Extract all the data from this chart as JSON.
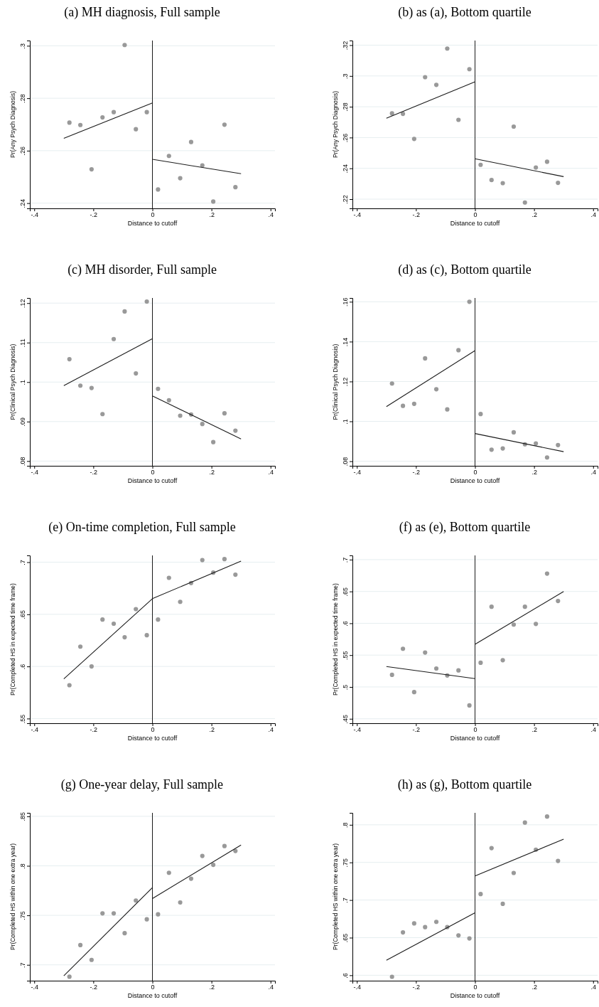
{
  "chart_data": [
    {
      "type": "scatter",
      "title": "(a) MH diagnosis, Full sample",
      "xlabel": "Distance to cutoff",
      "ylabel": "Pr(Any Psych Diagnosis)",
      "xlim": [
        -0.415,
        0.415
      ],
      "ylim": [
        0.238,
        0.302
      ],
      "xticks": [
        {
          "value": -0.4,
          "label": "-.4"
        },
        {
          "value": -0.2,
          "label": "-.2"
        },
        {
          "value": 0,
          "label": "0"
        },
        {
          "value": 0.2,
          "label": ".2"
        },
        {
          "value": 0.4,
          "label": ".4"
        }
      ],
      "yticks": [
        {
          "value": 0.24,
          "label": ".24"
        },
        {
          "value": 0.26,
          "label": ".26"
        },
        {
          "value": 0.28,
          "label": ".28"
        },
        {
          "value": 0.3,
          "label": ".3"
        }
      ],
      "grid": "y",
      "ref_lines": [
        {
          "axis": "x",
          "value": 0,
          "color": "#1a1a1a"
        }
      ],
      "x": [
        -0.281,
        -0.244,
        -0.206,
        -0.169,
        -0.131,
        -0.094,
        -0.056,
        -0.019,
        0.019,
        0.056,
        0.094,
        0.131,
        0.169,
        0.206,
        0.244,
        0.281
      ],
      "series": [
        {
          "color": "#999999",
          "marker": "circle",
          "values": [
            0.2707,
            0.2698,
            0.2529,
            0.2727,
            0.2747,
            0.3003,
            0.2682,
            0.2747,
            0.2452,
            0.258,
            0.2495,
            0.2633,
            0.2544,
            0.2406,
            0.2699,
            0.2461
          ]
        },
        {
          "type": "line",
          "color": "#1a1a1a",
          "x": [
            -0.3,
            0
          ],
          "values": [
            0.2647,
            0.2782
          ]
        },
        {
          "type": "line",
          "color": "#1a1a1a",
          "x": [
            0,
            0.3
          ],
          "values": [
            0.2567,
            0.2512
          ]
        }
      ]
    },
    {
      "type": "scatter",
      "title": "(b) as (a), Bottom quartile",
      "xlabel": "Distance to cutoff",
      "ylabel": "Pr(Any Psych Diagnosis)",
      "xlim": [
        -0.415,
        0.415
      ],
      "ylim": [
        0.214,
        0.323
      ],
      "xticks": [
        {
          "value": -0.4,
          "label": "-.4"
        },
        {
          "value": -0.2,
          "label": "-.2"
        },
        {
          "value": 0,
          "label": "0"
        },
        {
          "value": 0.2,
          "label": ".2"
        },
        {
          "value": 0.4,
          "label": ".4"
        }
      ],
      "yticks": [
        {
          "value": 0.22,
          "label": ".22"
        },
        {
          "value": 0.24,
          "label": ".24"
        },
        {
          "value": 0.26,
          "label": ".26"
        },
        {
          "value": 0.28,
          "label": ".28"
        },
        {
          "value": 0.3,
          "label": ".3"
        },
        {
          "value": 0.32,
          "label": ".32"
        }
      ],
      "grid": "y",
      "ref_lines": [
        {
          "axis": "x",
          "value": 0,
          "color": "#1a1a1a"
        }
      ],
      "x": [
        -0.281,
        -0.244,
        -0.206,
        -0.169,
        -0.131,
        -0.094,
        -0.056,
        -0.019,
        0.019,
        0.056,
        0.094,
        0.131,
        0.169,
        0.206,
        0.244,
        0.281
      ],
      "series": [
        {
          "color": "#999999",
          "marker": "circle",
          "values": [
            0.2757,
            0.2754,
            0.2591,
            0.2992,
            0.2942,
            0.3178,
            0.2715,
            0.3044,
            0.2423,
            0.2324,
            0.2304,
            0.2671,
            0.2178,
            0.2405,
            0.2443,
            0.2306
          ]
        },
        {
          "type": "line",
          "color": "#1a1a1a",
          "x": [
            -0.3,
            0
          ],
          "values": [
            0.2725,
            0.2962
          ]
        },
        {
          "type": "line",
          "color": "#1a1a1a",
          "x": [
            0,
            0.3
          ],
          "values": [
            0.2462,
            0.2346
          ]
        }
      ]
    },
    {
      "type": "scatter",
      "title": "(c) MH disorder, Full sample",
      "xlabel": "Distance to cutoff",
      "ylabel": "Pr(Clinical Psych Diagnosis)",
      "xlim": [
        -0.415,
        0.415
      ],
      "ylim": [
        0.0788,
        0.1213
      ],
      "xticks": [
        {
          "value": -0.4,
          "label": "-.4"
        },
        {
          "value": -0.2,
          "label": "-.2"
        },
        {
          "value": 0,
          "label": "0"
        },
        {
          "value": 0.2,
          "label": ".2"
        },
        {
          "value": 0.4,
          "label": ".4"
        }
      ],
      "yticks": [
        {
          "value": 0.08,
          "label": ".08"
        },
        {
          "value": 0.09,
          "label": ".09"
        },
        {
          "value": 0.1,
          "label": ".1"
        },
        {
          "value": 0.11,
          "label": ".11"
        },
        {
          "value": 0.12,
          "label": ".12"
        }
      ],
      "grid": "y",
      "ref_lines": [
        {
          "axis": "x",
          "value": 0,
          "color": "#1a1a1a"
        }
      ],
      "x": [
        -0.281,
        -0.244,
        -0.206,
        -0.169,
        -0.131,
        -0.094,
        -0.056,
        -0.019,
        0.019,
        0.056,
        0.094,
        0.131,
        0.169,
        0.206,
        0.244,
        0.281
      ],
      "series": [
        {
          "color": "#999999",
          "marker": "circle",
          "values": [
            0.1058,
            0.0991,
            0.0985,
            0.0919,
            0.1109,
            0.1179,
            0.1022,
            0.1204,
            0.0983,
            0.0954,
            0.0915,
            0.0918,
            0.0894,
            0.0848,
            0.0921,
            0.0877
          ]
        },
        {
          "type": "line",
          "color": "#1a1a1a",
          "x": [
            -0.3,
            0
          ],
          "values": [
            0.0991,
            0.111
          ]
        },
        {
          "type": "line",
          "color": "#1a1a1a",
          "x": [
            0,
            0.3
          ],
          "values": [
            0.0965,
            0.0856
          ]
        }
      ]
    },
    {
      "type": "scatter",
      "title": "(d) as (c), Bottom quartile",
      "xlabel": "Distance to cutoff",
      "ylabel": "Pr(Clinical Psych Diagnosis)",
      "xlim": [
        -0.415,
        0.415
      ],
      "ylim": [
        0.0777,
        0.1619
      ],
      "xticks": [
        {
          "value": -0.4,
          "label": "-.4"
        },
        {
          "value": -0.2,
          "label": "-.2"
        },
        {
          "value": 0,
          "label": "0"
        },
        {
          "value": 0.2,
          "label": ".2"
        },
        {
          "value": 0.4,
          "label": ".4"
        }
      ],
      "yticks": [
        {
          "value": 0.08,
          "label": ".08"
        },
        {
          "value": 0.1,
          "label": ".1"
        },
        {
          "value": 0.12,
          "label": ".12"
        },
        {
          "value": 0.14,
          "label": ".14"
        },
        {
          "value": 0.16,
          "label": ".16"
        }
      ],
      "grid": "y",
      "ref_lines": [
        {
          "axis": "x",
          "value": 0,
          "color": "#1a1a1a"
        }
      ],
      "x": [
        -0.281,
        -0.244,
        -0.206,
        -0.169,
        -0.131,
        -0.094,
        -0.056,
        -0.019,
        0.019,
        0.056,
        0.094,
        0.131,
        0.169,
        0.206,
        0.244,
        0.281
      ],
      "series": [
        {
          "color": "#999999",
          "marker": "circle",
          "values": [
            0.119,
            0.1078,
            0.1088,
            0.1316,
            0.1161,
            0.106,
            0.1357,
            0.16,
            0.1037,
            0.0858,
            0.0864,
            0.0945,
            0.0885,
            0.0889,
            0.0819,
            0.0881
          ]
        },
        {
          "type": "line",
          "color": "#1a1a1a",
          "x": [
            -0.3,
            0
          ],
          "values": [
            0.1074,
            0.1355
          ]
        },
        {
          "type": "line",
          "color": "#1a1a1a",
          "x": [
            0,
            0.3
          ],
          "values": [
            0.0939,
            0.0848
          ]
        }
      ]
    },
    {
      "type": "scatter",
      "title": "(e) On-time completion, Full sample",
      "xlabel": "Distance to cutoff",
      "ylabel": "Pr(Completed HS in expected time frame)",
      "xlim": [
        -0.415,
        0.415
      ],
      "ylim": [
        0.5455,
        0.7065
      ],
      "xticks": [
        {
          "value": -0.4,
          "label": "-.4"
        },
        {
          "value": -0.2,
          "label": "-.2"
        },
        {
          "value": 0,
          "label": "0"
        },
        {
          "value": 0.2,
          "label": ".2"
        },
        {
          "value": 0.4,
          "label": ".4"
        }
      ],
      "yticks": [
        {
          "value": 0.55,
          "label": ".55"
        },
        {
          "value": 0.6,
          "label": ".6"
        },
        {
          "value": 0.65,
          "label": ".65"
        },
        {
          "value": 0.7,
          "label": ".7"
        }
      ],
      "grid": "y",
      "ref_lines": [
        {
          "axis": "x",
          "value": 0,
          "color": "#1a1a1a"
        }
      ],
      "x": [
        -0.281,
        -0.244,
        -0.206,
        -0.169,
        -0.131,
        -0.094,
        -0.056,
        -0.019,
        0.019,
        0.056,
        0.094,
        0.131,
        0.169,
        0.206,
        0.244,
        0.281
      ],
      "series": [
        {
          "color": "#999999",
          "marker": "circle",
          "values": [
            0.582,
            0.619,
            0.6,
            0.645,
            0.641,
            0.628,
            0.655,
            0.63,
            0.645,
            0.685,
            0.662,
            0.68,
            0.702,
            0.69,
            0.703,
            0.688
          ]
        },
        {
          "type": "line",
          "color": "#1a1a1a",
          "x": [
            -0.3,
            0,
            0.3
          ],
          "values": [
            0.588,
            0.665,
            0.701
          ]
        }
      ]
    },
    {
      "type": "scatter",
      "title": "(f) as (e), Bottom quartile",
      "xlabel": "Distance to cutoff",
      "ylabel": "Pr(Completed HS in expected time frame)",
      "xlim": [
        -0.415,
        0.415
      ],
      "ylim": [
        0.443,
        0.7066
      ],
      "xticks": [
        {
          "value": -0.4,
          "label": "-.4"
        },
        {
          "value": -0.2,
          "label": "-.2"
        },
        {
          "value": 0,
          "label": "0"
        },
        {
          "value": 0.2,
          "label": ".2"
        },
        {
          "value": 0.4,
          "label": ".4"
        }
      ],
      "yticks": [
        {
          "value": 0.45,
          "label": ".45"
        },
        {
          "value": 0.5,
          "label": ".5"
        },
        {
          "value": 0.55,
          "label": ".55"
        },
        {
          "value": 0.6,
          "label": ".6"
        },
        {
          "value": 0.65,
          "label": ".65"
        },
        {
          "value": 0.7,
          "label": ".7"
        }
      ],
      "grid": "y",
      "ref_lines": [
        {
          "axis": "x",
          "value": 0,
          "color": "#1a1a1a"
        }
      ],
      "x": [
        -0.281,
        -0.244,
        -0.206,
        -0.169,
        -0.131,
        -0.094,
        -0.056,
        -0.019,
        0.019,
        0.056,
        0.094,
        0.131,
        0.169,
        0.206,
        0.244,
        0.281
      ],
      "series": [
        {
          "color": "#999999",
          "marker": "circle",
          "values": [
            0.519,
            0.56,
            0.492,
            0.554,
            0.529,
            0.518,
            0.526,
            0.471,
            0.538,
            0.626,
            0.542,
            0.598,
            0.626,
            0.599,
            0.678,
            0.635
          ]
        },
        {
          "type": "line",
          "color": "#1a1a1a",
          "x": [
            -0.3,
            0
          ],
          "values": [
            0.532,
            0.513
          ]
        },
        {
          "type": "line",
          "color": "#1a1a1a",
          "x": [
            0,
            0.3
          ],
          "values": [
            0.567,
            0.65
          ]
        }
      ]
    },
    {
      "type": "scatter",
      "title": "(g) One-year delay, Full sample",
      "xlabel": "Distance to cutoff",
      "ylabel": "Pr(Completed HS within one extra year)",
      "xlim": [
        -0.415,
        0.415
      ],
      "ylim": [
        0.684,
        0.8535
      ],
      "xticks": [
        {
          "value": -0.4,
          "label": "-.4"
        },
        {
          "value": -0.2,
          "label": "-.2"
        },
        {
          "value": 0,
          "label": "0"
        },
        {
          "value": 0.2,
          "label": ".2"
        },
        {
          "value": 0.4,
          "label": ".4"
        }
      ],
      "yticks": [
        {
          "value": 0.7,
          "label": ".7"
        },
        {
          "value": 0.75,
          "label": ".75"
        },
        {
          "value": 0.8,
          "label": ".8"
        },
        {
          "value": 0.85,
          "label": ".85"
        }
      ],
      "grid": "y",
      "ref_lines": [
        {
          "axis": "x",
          "value": 0,
          "color": "#1a1a1a"
        }
      ],
      "x": [
        -0.281,
        -0.244,
        -0.206,
        -0.169,
        -0.131,
        -0.094,
        -0.056,
        -0.019,
        0.019,
        0.056,
        0.094,
        0.131,
        0.169,
        0.206,
        0.244,
        0.281
      ],
      "series": [
        {
          "color": "#999999",
          "marker": "circle",
          "values": [
            0.688,
            0.72,
            0.705,
            0.752,
            0.752,
            0.732,
            0.765,
            0.746,
            0.751,
            0.793,
            0.763,
            0.787,
            0.81,
            0.801,
            0.82,
            0.815
          ]
        },
        {
          "type": "line",
          "color": "#1a1a1a",
          "x": [
            -0.3,
            0
          ],
          "values": [
            0.689,
            0.778
          ]
        },
        {
          "type": "line",
          "color": "#1a1a1a",
          "x": [
            0,
            0.3
          ],
          "values": [
            0.767,
            0.821
          ]
        }
      ]
    },
    {
      "type": "scatter",
      "title": "(h) as (g), Bottom quartile",
      "xlabel": "Distance to cutoff",
      "ylabel": "Pr(Completed HS within one extra year)",
      "xlim": [
        -0.415,
        0.415
      ],
      "ylim": [
        0.5928,
        0.8159
      ],
      "xticks": [
        {
          "value": -0.4,
          "label": "-.4"
        },
        {
          "value": -0.2,
          "label": "-.2"
        },
        {
          "value": 0,
          "label": "0"
        },
        {
          "value": 0.2,
          "label": ".2"
        },
        {
          "value": 0.4,
          "label": ".4"
        }
      ],
      "yticks": [
        {
          "value": 0.6,
          "label": ".6"
        },
        {
          "value": 0.65,
          "label": ".65"
        },
        {
          "value": 0.7,
          "label": ".7"
        },
        {
          "value": 0.75,
          "label": ".75"
        },
        {
          "value": 0.8,
          "label": ".8"
        }
      ],
      "grid": "y",
      "ref_lines": [
        {
          "axis": "x",
          "value": 0,
          "color": "#1a1a1a"
        }
      ],
      "x": [
        -0.281,
        -0.244,
        -0.206,
        -0.169,
        -0.131,
        -0.094,
        -0.056,
        -0.019,
        0.019,
        0.056,
        0.094,
        0.131,
        0.169,
        0.206,
        0.244,
        0.281
      ],
      "series": [
        {
          "color": "#999999",
          "marker": "circle",
          "values": [
            0.598,
            0.657,
            0.669,
            0.664,
            0.671,
            0.664,
            0.653,
            0.649,
            0.708,
            0.769,
            0.695,
            0.736,
            0.803,
            0.767,
            0.811,
            0.752
          ]
        },
        {
          "type": "line",
          "color": "#1a1a1a",
          "x": [
            -0.3,
            0
          ],
          "values": [
            0.62,
            0.683
          ]
        },
        {
          "type": "line",
          "color": "#1a1a1a",
          "x": [
            0,
            0.3
          ],
          "values": [
            0.732,
            0.781
          ]
        }
      ]
    }
  ]
}
